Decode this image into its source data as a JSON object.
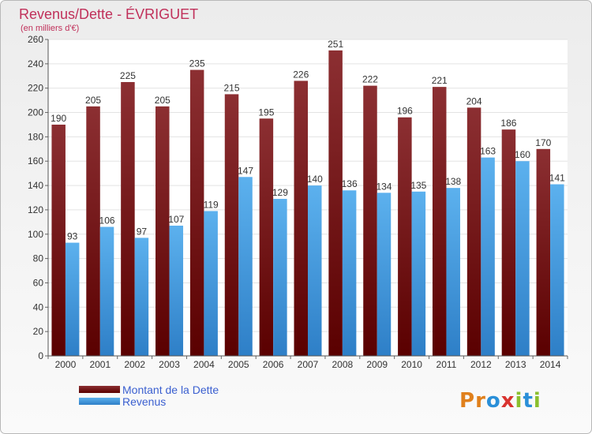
{
  "header": {
    "title": "Revenus/Dette - ÉVRIGUET",
    "subtitle": "(en milliers d'€)"
  },
  "legend": {
    "items": [
      {
        "label": "Montant de la Dette",
        "color": "#7a1c1c"
      },
      {
        "label": "Revenus",
        "color": "#4ba3e6"
      }
    ]
  },
  "brand": {
    "logo_text": "Proxiti"
  },
  "colors": {
    "title": "#c0305a",
    "legend_text": "#3a5fd0",
    "dette_top": "#8c2f32",
    "dette_bottom": "#5a0000",
    "revenus_top": "#5cb1ee",
    "revenus_bottom": "#2e7fc7"
  },
  "chart_data": {
    "type": "bar",
    "categories": [
      "2000",
      "2001",
      "2002",
      "2003",
      "2004",
      "2005",
      "2006",
      "2007",
      "2008",
      "2009",
      "2010",
      "2011",
      "2012",
      "2013",
      "2014"
    ],
    "series": [
      {
        "name": "Montant de la Dette",
        "values": [
          190,
          205,
          225,
          205,
          235,
          215,
          195,
          226,
          251,
          222,
          196,
          221,
          204,
          186,
          170
        ]
      },
      {
        "name": "Revenus",
        "values": [
          93,
          106,
          97,
          107,
          119,
          147,
          129,
          140,
          136,
          134,
          135,
          138,
          163,
          160,
          141
        ]
      }
    ],
    "ylim": [
      0,
      260
    ],
    "yticks": [
      0,
      20,
      40,
      60,
      80,
      100,
      120,
      140,
      160,
      180,
      200,
      220,
      240,
      260
    ],
    "grid": true,
    "legend_position": "bottom-left"
  }
}
